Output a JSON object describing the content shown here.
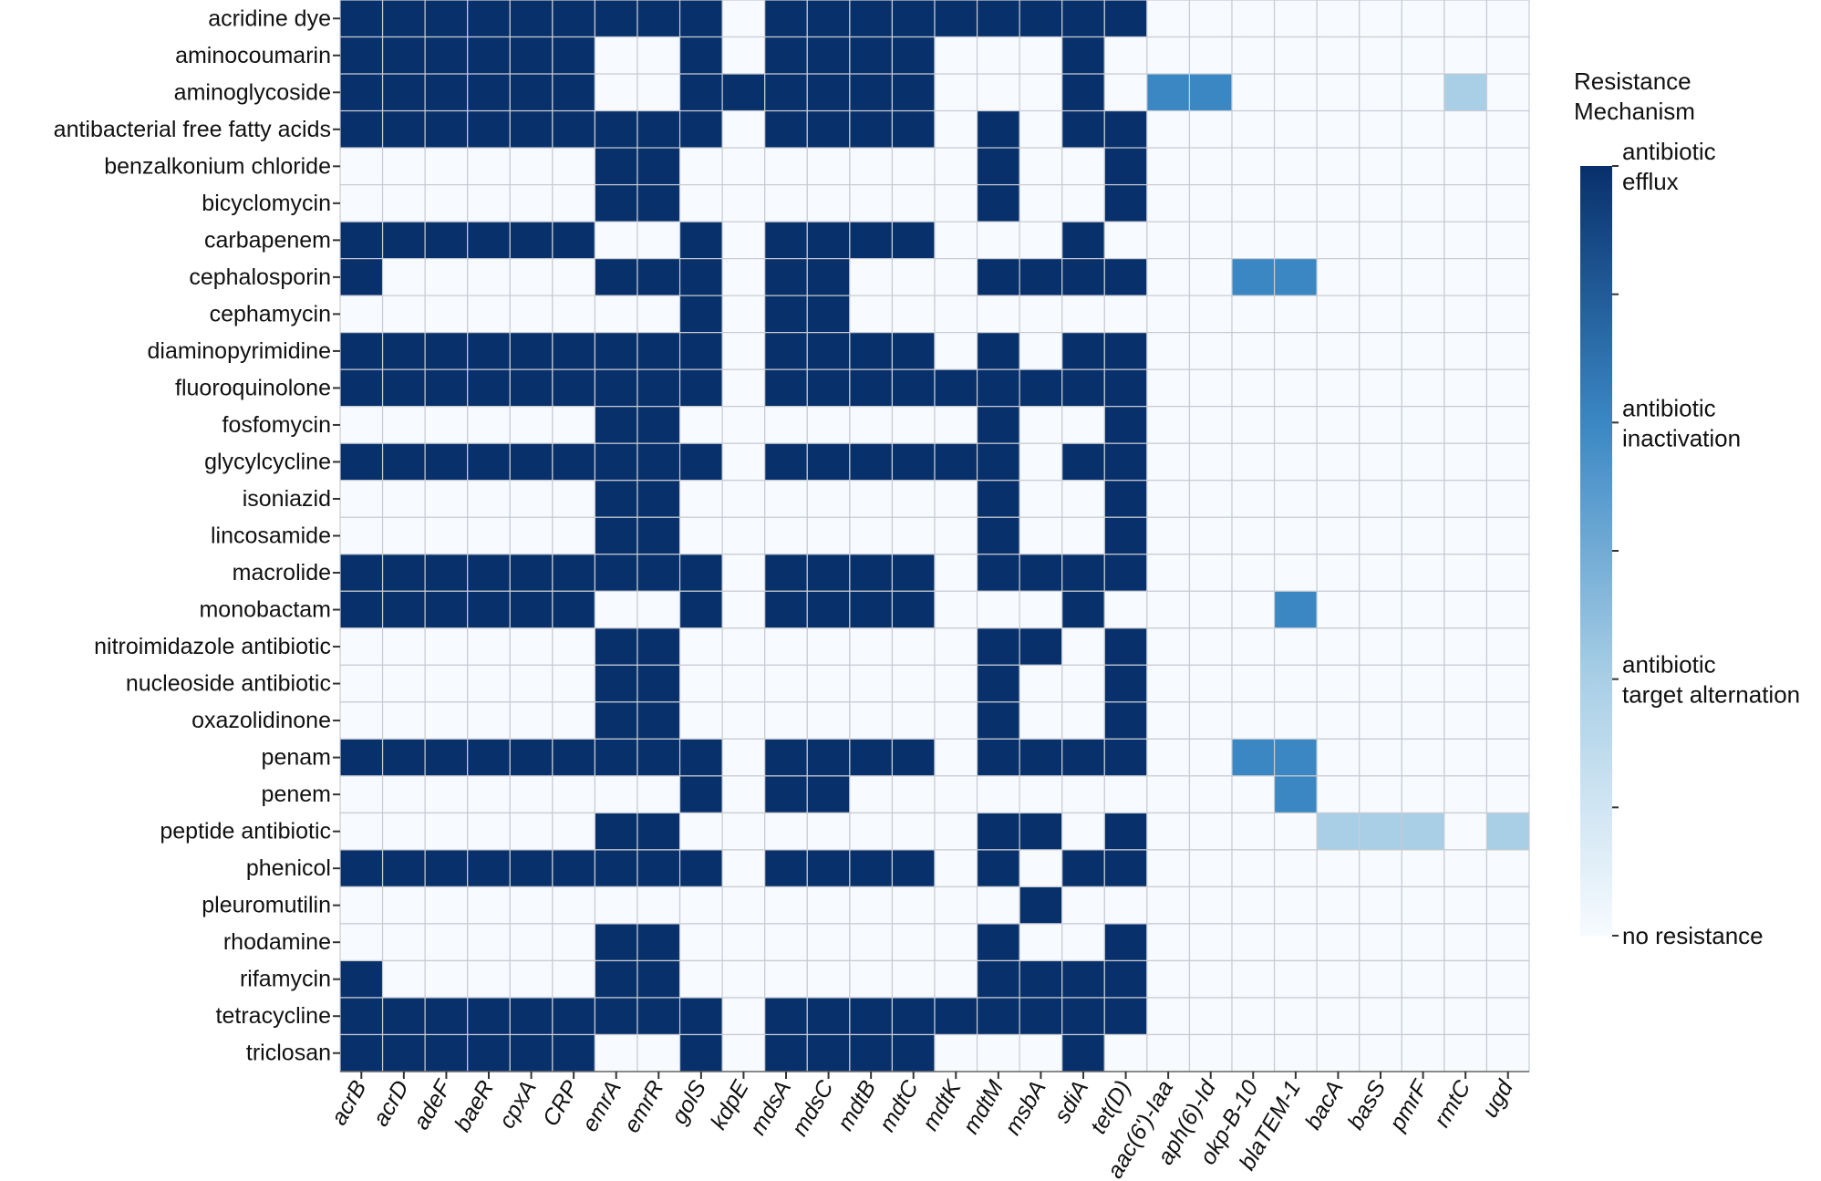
{
  "chart_data": {
    "type": "heatmap",
    "title": "",
    "xlabel": "",
    "ylabel": "",
    "grid": true,
    "x": [
      "acrB",
      "acrD",
      "adeF",
      "baeR",
      "cpxA",
      "CRP",
      "emrA",
      "emrR",
      "golS",
      "kdpE",
      "mdsA",
      "mdsC",
      "mdtB",
      "mdtC",
      "mdtK",
      "mdtM",
      "msbA",
      "sdiA",
      "tet(D)",
      "aac(6')-Iaa",
      "aph(6)-Id",
      "okp-B-10",
      "blaTEM-1",
      "bacA",
      "basS",
      "pmrF",
      "rmtC",
      "ugd"
    ],
    "y": [
      "acridine dye",
      "aminocoumarin",
      "aminoglycoside",
      "antibacterial free fatty acids",
      "benzalkonium chloride",
      "bicyclomycin",
      "carbapenem",
      "cephalosporin",
      "cephamycin",
      "diaminopyrimidine",
      "fluoroquinolone",
      "fosfomycin",
      "glycylcycline",
      "isoniazid",
      "lincosamide",
      "macrolide",
      "monobactam",
      "nitroimidazole antibiotic",
      "nucleoside antibiotic",
      "oxazolidinone",
      "penam",
      "penem",
      "peptide antibiotic",
      "phenicol",
      "pleuromutilin",
      "rhodamine",
      "rifamycin",
      "tetracycline",
      "triclosan"
    ],
    "values": [
      [
        3,
        3,
        3,
        3,
        3,
        3,
        3,
        3,
        3,
        0,
        3,
        3,
        3,
        3,
        3,
        3,
        3,
        3,
        3,
        0,
        0,
        0,
        0,
        0,
        0,
        0,
        0,
        0
      ],
      [
        3,
        3,
        3,
        3,
        3,
        3,
        0,
        0,
        3,
        0,
        3,
        3,
        3,
        3,
        0,
        0,
        0,
        3,
        0,
        0,
        0,
        0,
        0,
        0,
        0,
        0,
        0,
        0
      ],
      [
        3,
        3,
        3,
        3,
        3,
        3,
        0,
        0,
        3,
        3,
        3,
        3,
        3,
        3,
        0,
        0,
        0,
        3,
        0,
        2,
        2,
        0,
        0,
        0,
        0,
        0,
        1,
        0
      ],
      [
        3,
        3,
        3,
        3,
        3,
        3,
        3,
        3,
        3,
        0,
        3,
        3,
        3,
        3,
        0,
        3,
        0,
        3,
        3,
        0,
        0,
        0,
        0,
        0,
        0,
        0,
        0,
        0
      ],
      [
        0,
        0,
        0,
        0,
        0,
        0,
        3,
        3,
        0,
        0,
        0,
        0,
        0,
        0,
        0,
        3,
        0,
        0,
        3,
        0,
        0,
        0,
        0,
        0,
        0,
        0,
        0,
        0
      ],
      [
        0,
        0,
        0,
        0,
        0,
        0,
        3,
        3,
        0,
        0,
        0,
        0,
        0,
        0,
        0,
        3,
        0,
        0,
        3,
        0,
        0,
        0,
        0,
        0,
        0,
        0,
        0,
        0
      ],
      [
        3,
        3,
        3,
        3,
        3,
        3,
        0,
        0,
        3,
        0,
        3,
        3,
        3,
        3,
        0,
        0,
        0,
        3,
        0,
        0,
        0,
        0,
        0,
        0,
        0,
        0,
        0,
        0
      ],
      [
        3,
        0,
        0,
        0,
        0,
        0,
        3,
        3,
        3,
        0,
        3,
        3,
        0,
        0,
        0,
        3,
        3,
        3,
        3,
        0,
        0,
        2,
        2,
        0,
        0,
        0,
        0,
        0
      ],
      [
        0,
        0,
        0,
        0,
        0,
        0,
        0,
        0,
        3,
        0,
        3,
        3,
        0,
        0,
        0,
        0,
        0,
        0,
        0,
        0,
        0,
        0,
        0,
        0,
        0,
        0,
        0,
        0
      ],
      [
        3,
        3,
        3,
        3,
        3,
        3,
        3,
        3,
        3,
        0,
        3,
        3,
        3,
        3,
        0,
        3,
        0,
        3,
        3,
        0,
        0,
        0,
        0,
        0,
        0,
        0,
        0,
        0
      ],
      [
        3,
        3,
        3,
        3,
        3,
        3,
        3,
        3,
        3,
        0,
        3,
        3,
        3,
        3,
        3,
        3,
        3,
        3,
        3,
        0,
        0,
        0,
        0,
        0,
        0,
        0,
        0,
        0
      ],
      [
        0,
        0,
        0,
        0,
        0,
        0,
        3,
        3,
        0,
        0,
        0,
        0,
        0,
        0,
        0,
        3,
        0,
        0,
        3,
        0,
        0,
        0,
        0,
        0,
        0,
        0,
        0,
        0
      ],
      [
        3,
        3,
        3,
        3,
        3,
        3,
        3,
        3,
        3,
        0,
        3,
        3,
        3,
        3,
        3,
        3,
        0,
        3,
        3,
        0,
        0,
        0,
        0,
        0,
        0,
        0,
        0,
        0
      ],
      [
        0,
        0,
        0,
        0,
        0,
        0,
        3,
        3,
        0,
        0,
        0,
        0,
        0,
        0,
        0,
        3,
        0,
        0,
        3,
        0,
        0,
        0,
        0,
        0,
        0,
        0,
        0,
        0
      ],
      [
        0,
        0,
        0,
        0,
        0,
        0,
        3,
        3,
        0,
        0,
        0,
        0,
        0,
        0,
        0,
        3,
        0,
        0,
        3,
        0,
        0,
        0,
        0,
        0,
        0,
        0,
        0,
        0
      ],
      [
        3,
        3,
        3,
        3,
        3,
        3,
        3,
        3,
        3,
        0,
        3,
        3,
        3,
        3,
        0,
        3,
        3,
        3,
        3,
        0,
        0,
        0,
        0,
        0,
        0,
        0,
        0,
        0
      ],
      [
        3,
        3,
        3,
        3,
        3,
        3,
        0,
        0,
        3,
        0,
        3,
        3,
        3,
        3,
        0,
        0,
        0,
        3,
        0,
        0,
        0,
        0,
        2,
        0,
        0,
        0,
        0,
        0
      ],
      [
        0,
        0,
        0,
        0,
        0,
        0,
        3,
        3,
        0,
        0,
        0,
        0,
        0,
        0,
        0,
        3,
        3,
        0,
        3,
        0,
        0,
        0,
        0,
        0,
        0,
        0,
        0,
        0
      ],
      [
        0,
        0,
        0,
        0,
        0,
        0,
        3,
        3,
        0,
        0,
        0,
        0,
        0,
        0,
        0,
        3,
        0,
        0,
        3,
        0,
        0,
        0,
        0,
        0,
        0,
        0,
        0,
        0
      ],
      [
        0,
        0,
        0,
        0,
        0,
        0,
        3,
        3,
        0,
        0,
        0,
        0,
        0,
        0,
        0,
        3,
        0,
        0,
        3,
        0,
        0,
        0,
        0,
        0,
        0,
        0,
        0,
        0
      ],
      [
        3,
        3,
        3,
        3,
        3,
        3,
        3,
        3,
        3,
        0,
        3,
        3,
        3,
        3,
        0,
        3,
        3,
        3,
        3,
        0,
        0,
        2,
        2,
        0,
        0,
        0,
        0,
        0
      ],
      [
        0,
        0,
        0,
        0,
        0,
        0,
        0,
        0,
        3,
        0,
        3,
        3,
        0,
        0,
        0,
        0,
        0,
        0,
        0,
        0,
        0,
        0,
        2,
        0,
        0,
        0,
        0,
        0
      ],
      [
        0,
        0,
        0,
        0,
        0,
        0,
        3,
        3,
        0,
        0,
        0,
        0,
        0,
        0,
        0,
        3,
        3,
        0,
        3,
        0,
        0,
        0,
        0,
        1,
        1,
        1,
        0,
        1
      ],
      [
        3,
        3,
        3,
        3,
        3,
        3,
        3,
        3,
        3,
        0,
        3,
        3,
        3,
        3,
        0,
        3,
        0,
        3,
        3,
        0,
        0,
        0,
        0,
        0,
        0,
        0,
        0,
        0
      ],
      [
        0,
        0,
        0,
        0,
        0,
        0,
        0,
        0,
        0,
        0,
        0,
        0,
        0,
        0,
        0,
        0,
        3,
        0,
        0,
        0,
        0,
        0,
        0,
        0,
        0,
        0,
        0,
        0
      ],
      [
        0,
        0,
        0,
        0,
        0,
        0,
        3,
        3,
        0,
        0,
        0,
        0,
        0,
        0,
        0,
        3,
        0,
        0,
        3,
        0,
        0,
        0,
        0,
        0,
        0,
        0,
        0,
        0
      ],
      [
        3,
        0,
        0,
        0,
        0,
        0,
        3,
        3,
        0,
        0,
        0,
        0,
        0,
        0,
        0,
        3,
        3,
        3,
        3,
        0,
        0,
        0,
        0,
        0,
        0,
        0,
        0,
        0
      ],
      [
        3,
        3,
        3,
        3,
        3,
        3,
        3,
        3,
        3,
        0,
        3,
        3,
        3,
        3,
        3,
        3,
        3,
        3,
        3,
        0,
        0,
        0,
        0,
        0,
        0,
        0,
        0,
        0
      ],
      [
        3,
        3,
        3,
        3,
        3,
        3,
        0,
        0,
        3,
        0,
        3,
        3,
        3,
        3,
        0,
        0,
        0,
        3,
        0,
        0,
        0,
        0,
        0,
        0,
        0,
        0,
        0,
        0
      ]
    ],
    "value_range": [
      0,
      3
    ],
    "colorbar": {
      "title": "Resistance Mechanism",
      "placement": "right",
      "ticks": [
        {
          "value": 3,
          "label": [
            "antibiotic",
            "efflux"
          ]
        },
        {
          "value": 2,
          "label": [
            "antibiotic",
            "inactivation"
          ]
        },
        {
          "value": 1,
          "label": [
            "antibiotic",
            "target alternation"
          ]
        },
        {
          "value": 0,
          "label": [
            "no resistance"
          ]
        }
      ],
      "minor_ticks": [
        2.5,
        1.5,
        0.5
      ]
    },
    "colors": {
      "0": "#f7fbff",
      "1": "#a9cfe6",
      "2": "#3a87c4",
      "3": "#08306b",
      "grid": "#c8ccd2"
    }
  }
}
